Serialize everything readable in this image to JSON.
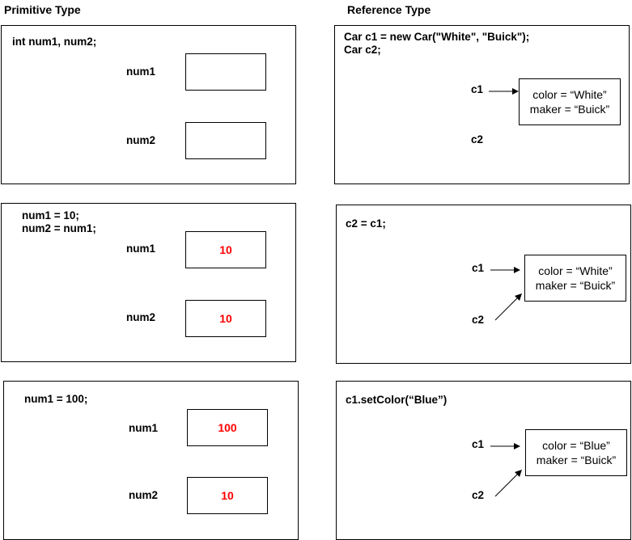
{
  "headings": {
    "primitive": "Primitive Type",
    "reference": "Reference Type"
  },
  "primitive": {
    "panel1": {
      "code": "int num1, num2;",
      "vars": [
        {
          "name": "num1",
          "value": ""
        },
        {
          "name": "num2",
          "value": ""
        }
      ]
    },
    "panel2": {
      "code": "num1 = 10;\nnum2 = num1;",
      "vars": [
        {
          "name": "num1",
          "value": "10"
        },
        {
          "name": "num2",
          "value": "10"
        }
      ]
    },
    "panel3": {
      "code": "num1 = 100;",
      "vars": [
        {
          "name": "num1",
          "value": "100"
        },
        {
          "name": "num2",
          "value": "10"
        }
      ]
    }
  },
  "reference": {
    "panel1": {
      "code": "Car c1 = new Car(\"White\", \"Buick\");\nCar c2;",
      "ref1": "c1",
      "ref2": "c2",
      "object": {
        "color": "color = “White”",
        "maker": "maker = “Buick”"
      }
    },
    "panel2": {
      "code": "c2 = c1;",
      "ref1": "c1",
      "ref2": "c2",
      "object": {
        "color": "color = “White”",
        "maker": "maker = “Buick”"
      }
    },
    "panel3": {
      "code": "c1.setColor(“Blue”)",
      "ref1": "c1",
      "ref2": "c2",
      "object": {
        "color": "color = “Blue”",
        "maker": "maker = “Buick”"
      }
    }
  },
  "colors": {
    "value_text": "#ff0000",
    "border": "#000000"
  }
}
